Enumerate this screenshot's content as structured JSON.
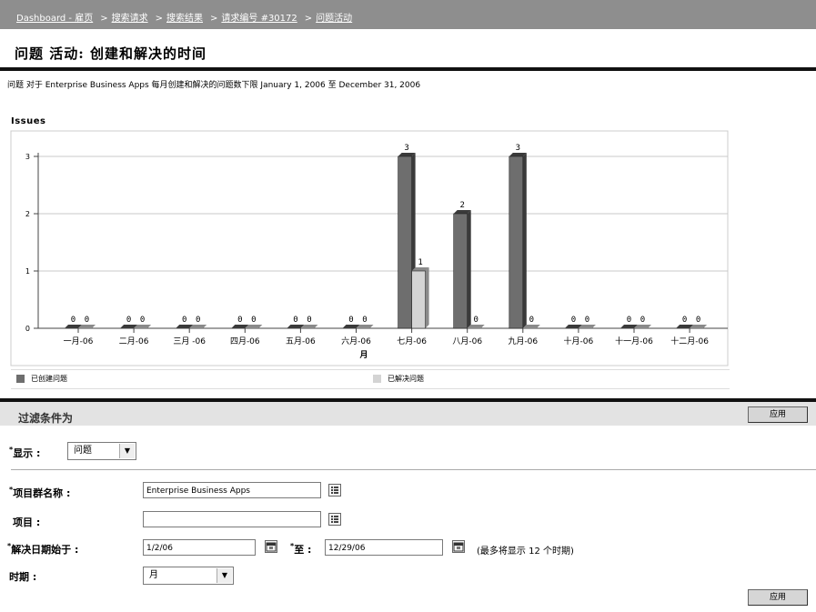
{
  "breadcrumbs": [
    {
      "label": "Dashboard - 雇页"
    },
    {
      "label": "搜索请求"
    },
    {
      "label": "搜索结果"
    },
    {
      "label": "请求编号  #30172"
    },
    {
      "label": "问题活动"
    }
  ],
  "page_title": "问题  活动: 创建和解决的时间",
  "description": "问题  对于 Enterprise Business Apps 每月创建和解决的问题数下限  January 1, 2006 至  December 31, 2006",
  "chart_data": {
    "type": "bar",
    "title": "Issues",
    "xlabel": "月",
    "ylabel": "",
    "ylim": [
      0,
      3
    ],
    "yticks": [
      0,
      1,
      2,
      3
    ],
    "categories": [
      "一月-06",
      "二月-06",
      "三月 -06",
      "四月-06",
      "五月-06",
      "六月-06",
      "七月-06",
      "八月-06",
      "九月-06",
      "十月-06",
      "十一月-06",
      "十二月-06"
    ],
    "series": [
      {
        "name": "已创建问题",
        "color": "#6e6e6e",
        "values": [
          0,
          0,
          0,
          0,
          0,
          0,
          3,
          2,
          3,
          0,
          0,
          0
        ]
      },
      {
        "name": "已解决问题",
        "color": "#d4d4d4",
        "values": [
          0,
          0,
          0,
          0,
          0,
          0,
          1,
          0,
          0,
          0,
          0,
          0
        ]
      }
    ],
    "grid": true,
    "legend": "bottom"
  },
  "filter": {
    "title": "过滤条件为",
    "apply_label": "应用",
    "show_label": "显示 :",
    "show_value": "问题",
    "project_group_label": "项目群名称 :",
    "project_group_value": "Enterprise Business Apps",
    "project_label": "项目 :",
    "project_value": "",
    "resolve_from_label": "解决日期始于 :",
    "resolve_from_value": "1/2/06",
    "to_label": "至 :",
    "to_value": "12/29/06",
    "max_note": "(最多将显示  12 个时期)",
    "period_label": "时期 :",
    "period_value": "月"
  }
}
